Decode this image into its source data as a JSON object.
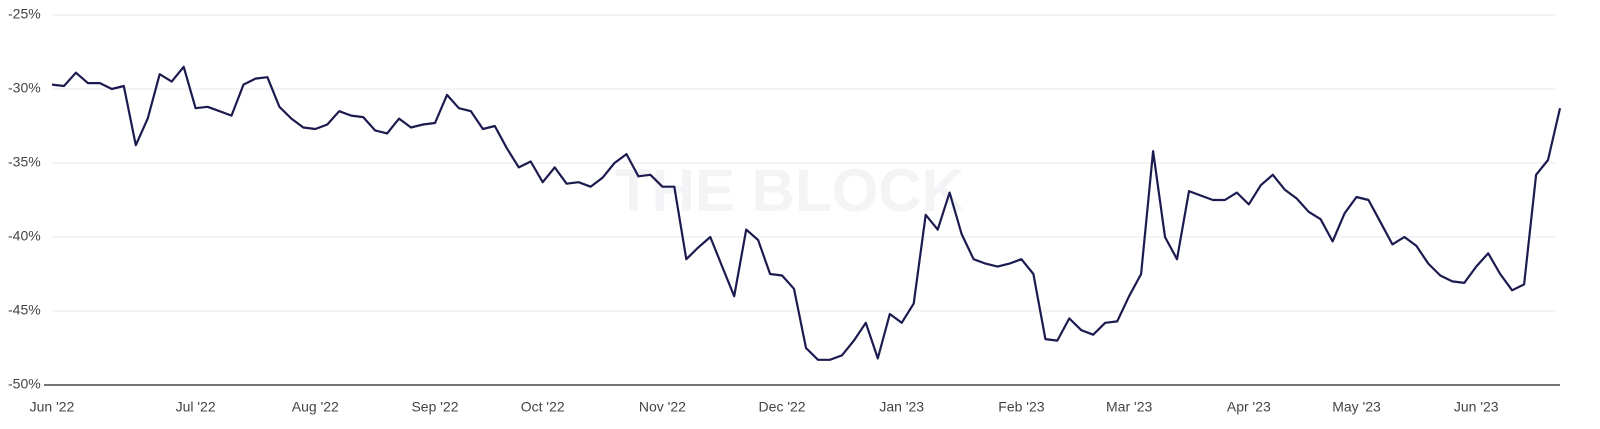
{
  "chart_data": {
    "type": "line",
    "watermark": "THE BLOCK",
    "categories": [
      "Jun '22",
      null,
      null,
      null,
      null,
      null,
      null,
      null,
      null,
      null,
      null,
      null,
      "Jul '22",
      null,
      null,
      null,
      null,
      null,
      null,
      null,
      null,
      null,
      "Aug '22",
      null,
      null,
      null,
      null,
      null,
      null,
      null,
      null,
      null,
      "Sep '22",
      null,
      null,
      null,
      null,
      null,
      null,
      null,
      null,
      "Oct '22",
      null,
      null,
      null,
      null,
      null,
      null,
      null,
      null,
      null,
      "Nov '22",
      null,
      null,
      null,
      null,
      null,
      null,
      null,
      null,
      null,
      "Dec '22",
      null,
      null,
      null,
      null,
      null,
      null,
      null,
      null,
      null,
      "Jan '23",
      null,
      null,
      null,
      null,
      null,
      null,
      null,
      null,
      null,
      "Feb '23",
      null,
      null,
      null,
      null,
      null,
      null,
      null,
      null,
      "Mar '23",
      null,
      null,
      null,
      null,
      null,
      null,
      null,
      null,
      null,
      "Apr '23",
      null,
      null,
      null,
      null,
      null,
      null,
      null,
      null,
      "May '23",
      null,
      null,
      null,
      null,
      null,
      null,
      null,
      null,
      null,
      "Jun '23",
      null,
      null,
      null,
      null,
      null,
      null,
      null
    ],
    "series": [
      {
        "color": "#1c1b4f",
        "values": [
          -29.7,
          -29.8,
          -28.9,
          -29.6,
          -29.6,
          -30.0,
          -29.8,
          -33.8,
          -32.0,
          -29.0,
          -29.5,
          -28.5,
          -31.3,
          -31.2,
          -31.5,
          -31.8,
          -29.7,
          -29.3,
          -29.2,
          -31.2,
          -32.0,
          -32.6,
          -32.7,
          -32.4,
          -31.5,
          -31.8,
          -31.9,
          -32.8,
          -33.0,
          -32.0,
          -32.6,
          -32.4,
          -32.3,
          -30.4,
          -31.3,
          -31.5,
          -32.7,
          -32.5,
          -34.0,
          -35.3,
          -34.9,
          -36.3,
          -35.3,
          -36.4,
          -36.3,
          -36.6,
          -36.0,
          -35.0,
          -34.4,
          -35.9,
          -35.8,
          -36.6,
          -36.6,
          -41.5,
          -40.7,
          -40.0,
          -42.0,
          -44.0,
          -39.5,
          -40.2,
          -42.5,
          -42.6,
          -43.5,
          -47.5,
          -48.3,
          -48.3,
          -48.0,
          -47.0,
          -45.8,
          -48.2,
          -45.2,
          -45.8,
          -44.5,
          -38.5,
          -39.5,
          -37.0,
          -39.8,
          -41.5,
          -41.8,
          -42.0,
          -41.8,
          -41.5,
          -42.5,
          -46.9,
          -47.0,
          -45.5,
          -46.3,
          -46.6,
          -45.8,
          -45.7,
          -44.0,
          -42.5,
          -34.2,
          -40.0,
          -41.5,
          -36.9,
          -37.2,
          -37.5,
          -37.5,
          -37.0,
          -37.8,
          -36.5,
          -35.8,
          -36.8,
          -37.4,
          -38.3,
          -38.8,
          -40.3,
          -38.4,
          -37.3,
          -37.5,
          -39.0,
          -40.5,
          -40.0,
          -40.6,
          -41.8,
          -42.6,
          -43.0,
          -43.1,
          -42.0,
          -41.1,
          -42.5,
          -43.6,
          -43.2,
          -35.8,
          -34.8,
          -31.3
        ]
      }
    ],
    "ylim": [
      -50,
      -25
    ],
    "yticks": [
      {
        "value": -25,
        "label": "-25%"
      },
      {
        "value": -30,
        "label": "-30%"
      },
      {
        "value": -35,
        "label": "-35%"
      },
      {
        "value": -40,
        "label": "-40%"
      },
      {
        "value": -45,
        "label": "-45%"
      },
      {
        "value": -50,
        "label": "-50%"
      }
    ],
    "grid": true
  }
}
